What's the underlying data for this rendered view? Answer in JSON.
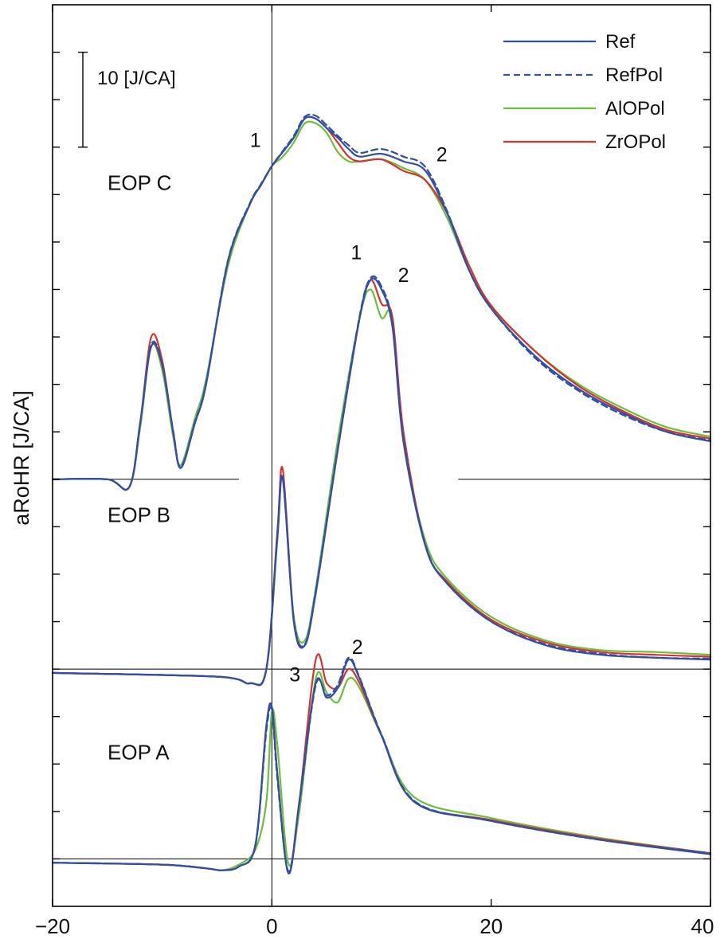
{
  "chart_data": {
    "type": "line",
    "title": "",
    "xlabel": "",
    "ylabel": "aRoHR [J/CA]",
    "xlim": [
      -20,
      40
    ],
    "xticks": [
      -20,
      0,
      20,
      40
    ],
    "ylim": [
      -5,
      90
    ],
    "grid": false,
    "scale_bar": {
      "label": "10 [J/CA]",
      "value": 10
    },
    "legend": {
      "position": "top-right"
    },
    "series_styles": [
      {
        "name": "Ref",
        "color": "#2f4fa8",
        "dash": "solid"
      },
      {
        "name": "RefPol",
        "color": "#2f4fa8",
        "dash": "dashed"
      },
      {
        "name": "AlOPol",
        "color": "#6cbf3a",
        "dash": "solid"
      },
      {
        "name": "ZrOPol",
        "color": "#d8322c",
        "dash": "solid"
      }
    ],
    "panels": [
      {
        "name": "EOP A",
        "offset": 0,
        "x": [
          -20,
          -10,
          -6,
          -4.5,
          -3,
          -1.5,
          -0.5,
          0,
          0.5,
          1.5,
          2.5,
          4,
          5,
          6,
          7,
          8,
          10,
          13,
          20,
          30,
          40
        ],
        "series": [
          {
            "name": "Ref",
            "values": [
              -0.4,
              -0.6,
              -1.0,
              -1.2,
              -0.8,
              1.5,
              14,
              16,
              9,
              -1.5,
              6,
              18.5,
              17,
              18,
              21,
              19,
              13,
              6,
              4,
              2,
              0.5
            ]
          },
          {
            "name": "RefPol",
            "values": [
              -0.4,
              -0.6,
              -1.0,
              -1.2,
              -0.8,
              1.4,
              13.5,
              15.7,
              8.5,
              -1.3,
              5.8,
              18.3,
              17.2,
              18.3,
              21.2,
              19.1,
              13.1,
              6.1,
              4.0,
              2.0,
              0.6
            ]
          },
          {
            "name": "AlOPol",
            "values": [
              -0.4,
              -0.6,
              -1.0,
              -1.2,
              -0.6,
              1.0,
              6,
              15.5,
              12,
              -0.5,
              5,
              19,
              17.5,
              16.5,
              19,
              18,
              13,
              6.5,
              4.3,
              2.2,
              0.6
            ]
          },
          {
            "name": "ZrOPol",
            "values": [
              -0.4,
              -0.6,
              -1.0,
              -1.2,
              -0.8,
              1.5,
              14,
              16,
              9,
              -1.5,
              6,
              21,
              18.5,
              18,
              20,
              18.5,
              13,
              6,
              4.1,
              2.1,
              0.6
            ]
          }
        ]
      },
      {
        "name": "EOP B",
        "offset": 20,
        "x": [
          -20,
          -5,
          -2,
          -0.5,
          0.5,
          1,
          2,
          3,
          4,
          6,
          8,
          9,
          10,
          11,
          12,
          14,
          16,
          20,
          25,
          30,
          35,
          40
        ],
        "series": [
          {
            "name": "Ref",
            "values": [
              -0.4,
              -0.8,
              -1.5,
              0,
              14,
              20,
              5,
              2.5,
              8,
              23,
              37,
              41,
              40,
              36,
              24,
              13,
              9,
              5,
              2.5,
              1.5,
              1.2,
              1.0
            ]
          },
          {
            "name": "RefPol",
            "values": [
              -0.4,
              -0.8,
              -1.5,
              0,
              14,
              20.2,
              5.2,
              2.6,
              8.2,
              23.2,
              37.2,
              41.2,
              40.3,
              36.3,
              24.2,
              13.1,
              9.0,
              5.0,
              2.6,
              1.6,
              1.2,
              1.1
            ]
          },
          {
            "name": "AlOPol",
            "values": [
              -0.4,
              -0.8,
              -1.5,
              0,
              13.5,
              20,
              5.5,
              3,
              8.5,
              24,
              37,
              40,
              37,
              37,
              24,
              13.5,
              9.5,
              5.5,
              3,
              2,
              1.8,
              1.5
            ]
          },
          {
            "name": "ZrOPol",
            "values": [
              -0.4,
              -0.8,
              -1.5,
              0,
              14.5,
              21,
              5,
              2.5,
              8,
              23,
              37,
              41,
              38.5,
              37,
              25,
              13,
              9.2,
              5.2,
              2.8,
              1.8,
              1.5,
              1.3
            ]
          }
        ]
      },
      {
        "name": "EOP C",
        "offset": 40,
        "x": [
          -20,
          -15,
          -13,
          -12,
          -11,
          -10,
          -9,
          -8.3,
          -7,
          -6,
          -4,
          -2,
          -1,
          0,
          1,
          2,
          3,
          4,
          5,
          6,
          7,
          8,
          10,
          12,
          14,
          16,
          18,
          20,
          24,
          28,
          32,
          36,
          40
        ],
        "series": [
          {
            "name": "Ref",
            "values": [
              0,
              0,
              -0.8,
              6,
              14,
              12,
              5,
              1.2,
              6,
              10,
              23,
              29,
              31,
              33,
              34.5,
              36,
              38,
              38,
              37,
              36,
              34.8,
              34,
              34.3,
              33.5,
              32.5,
              28,
              22,
              18,
              13,
              9.5,
              7,
              5,
              4
            ]
          },
          {
            "name": "RefPol",
            "values": [
              0,
              0,
              -0.8,
              6,
              14.2,
              12.1,
              5.1,
              1.3,
              6.1,
              10.1,
              23.1,
              29.1,
              31.1,
              33,
              34.6,
              36.2,
              38.2,
              38.3,
              37.3,
              36.2,
              35.2,
              34.4,
              34.8,
              34,
              32.9,
              28.2,
              22,
              18,
              12.8,
              9.3,
              6.8,
              5,
              4.1
            ]
          },
          {
            "name": "AlOPol",
            "values": [
              0,
              0,
              -0.8,
              5.5,
              14,
              11.5,
              4.5,
              1.5,
              6.5,
              10.5,
              22.5,
              29,
              31,
              33,
              34,
              35.5,
              37.5,
              37.5,
              36.5,
              34.5,
              33.5,
              33.5,
              33.7,
              32.8,
              31.5,
              27.5,
              22,
              18.2,
              13.5,
              10,
              7.5,
              5.5,
              4.5
            ]
          },
          {
            "name": "ZrOPol",
            "values": [
              0,
              0,
              -0.8,
              6,
              15,
              12.5,
              5,
              1.2,
              6,
              10,
              23,
              29,
              31,
              33,
              34.5,
              36,
              38,
              38,
              37,
              35.5,
              34,
              33.5,
              33.7,
              32.5,
              31.5,
              28,
              22.5,
              18.3,
              13.5,
              9.8,
              7.2,
              5.2,
              4.3
            ]
          }
        ]
      }
    ],
    "annotations": [
      {
        "text": "1",
        "x": -1.5,
        "y": 75
      },
      {
        "text": "2",
        "x": 15.5,
        "y": 73.5
      },
      {
        "text": "1",
        "x": 7.7,
        "y": 63.2
      },
      {
        "text": "2",
        "x": 12,
        "y": 60.8
      },
      {
        "text": "3",
        "x": 2.1,
        "y": 18.7
      },
      {
        "text": "2",
        "x": 7.8,
        "y": 21.6
      }
    ]
  }
}
